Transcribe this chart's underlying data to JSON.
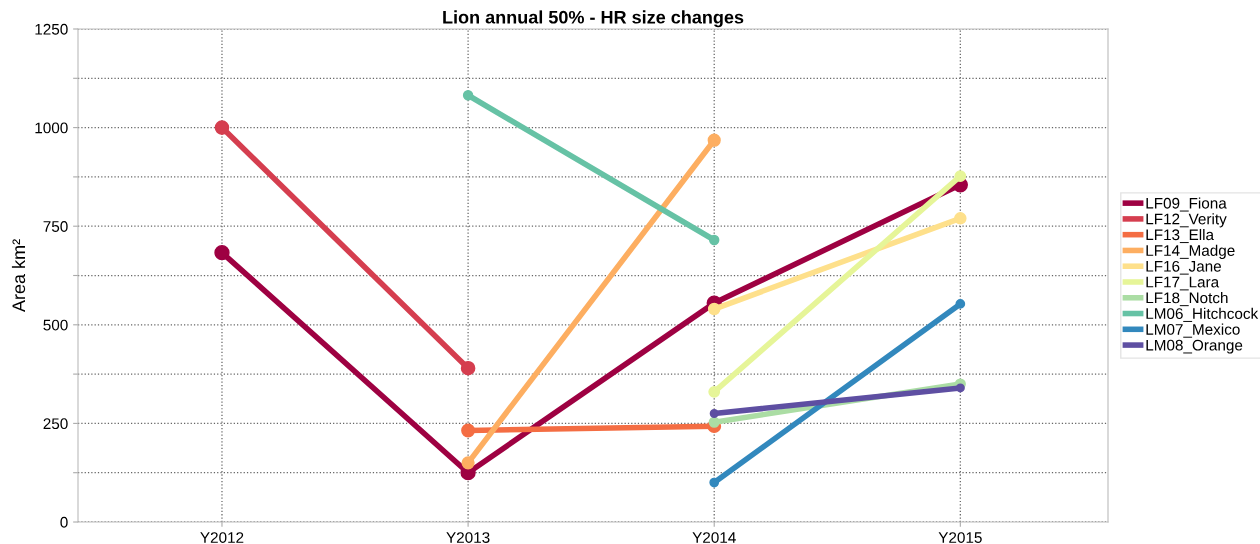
{
  "chart_data": {
    "type": "line",
    "title": "Lion annual 50% - HR size changes",
    "ylabel": "Area km²",
    "categories": [
      "Y2012",
      "Y2013",
      "Y2014",
      "Y2015"
    ],
    "series": [
      {
        "name": "LF09_Fiona",
        "color": "#9e0142",
        "values": [
          683,
          125,
          555,
          855
        ]
      },
      {
        "name": "LF12_Verity",
        "color": "#d53e4f",
        "values": [
          1000,
          390,
          null,
          null
        ]
      },
      {
        "name": "LF13_Ella",
        "color": "#f46d43",
        "values": [
          null,
          232,
          243,
          null
        ]
      },
      {
        "name": "LF14_Madge",
        "color": "#fdae61",
        "values": [
          null,
          150,
          968,
          null
        ]
      },
      {
        "name": "LF16_Jane",
        "color": "#fee08b",
        "values": [
          null,
          null,
          540,
          770
        ]
      },
      {
        "name": "LF17_Lara",
        "color": "#e6f598",
        "values": [
          null,
          null,
          330,
          877
        ]
      },
      {
        "name": "LF18_Notch",
        "color": "#abdda4",
        "values": [
          null,
          null,
          253,
          350
        ]
      },
      {
        "name": "LM06_Hitchcock",
        "color": "#66c2a5",
        "values": [
          null,
          1082,
          715,
          null
        ]
      },
      {
        "name": "LM07_Mexico",
        "color": "#3288bd",
        "values": [
          null,
          null,
          100,
          553
        ]
      },
      {
        "name": "LM08_Orange",
        "color": "#5e4fa2",
        "values": [
          null,
          null,
          275,
          340
        ]
      }
    ],
    "ylim": [
      0,
      1250
    ],
    "yticks": [
      0,
      {
        "value": 125,
        "label": null
      },
      250,
      {
        "value": 375,
        "label": null
      },
      500,
      {
        "value": 625,
        "label": null
      },
      750,
      {
        "value": 875,
        "label": null
      },
      1000,
      {
        "value": 1125,
        "label": null
      },
      1250
    ],
    "grid": true,
    "legend": "right",
    "marker": "circle",
    "line_style": "solid"
  }
}
